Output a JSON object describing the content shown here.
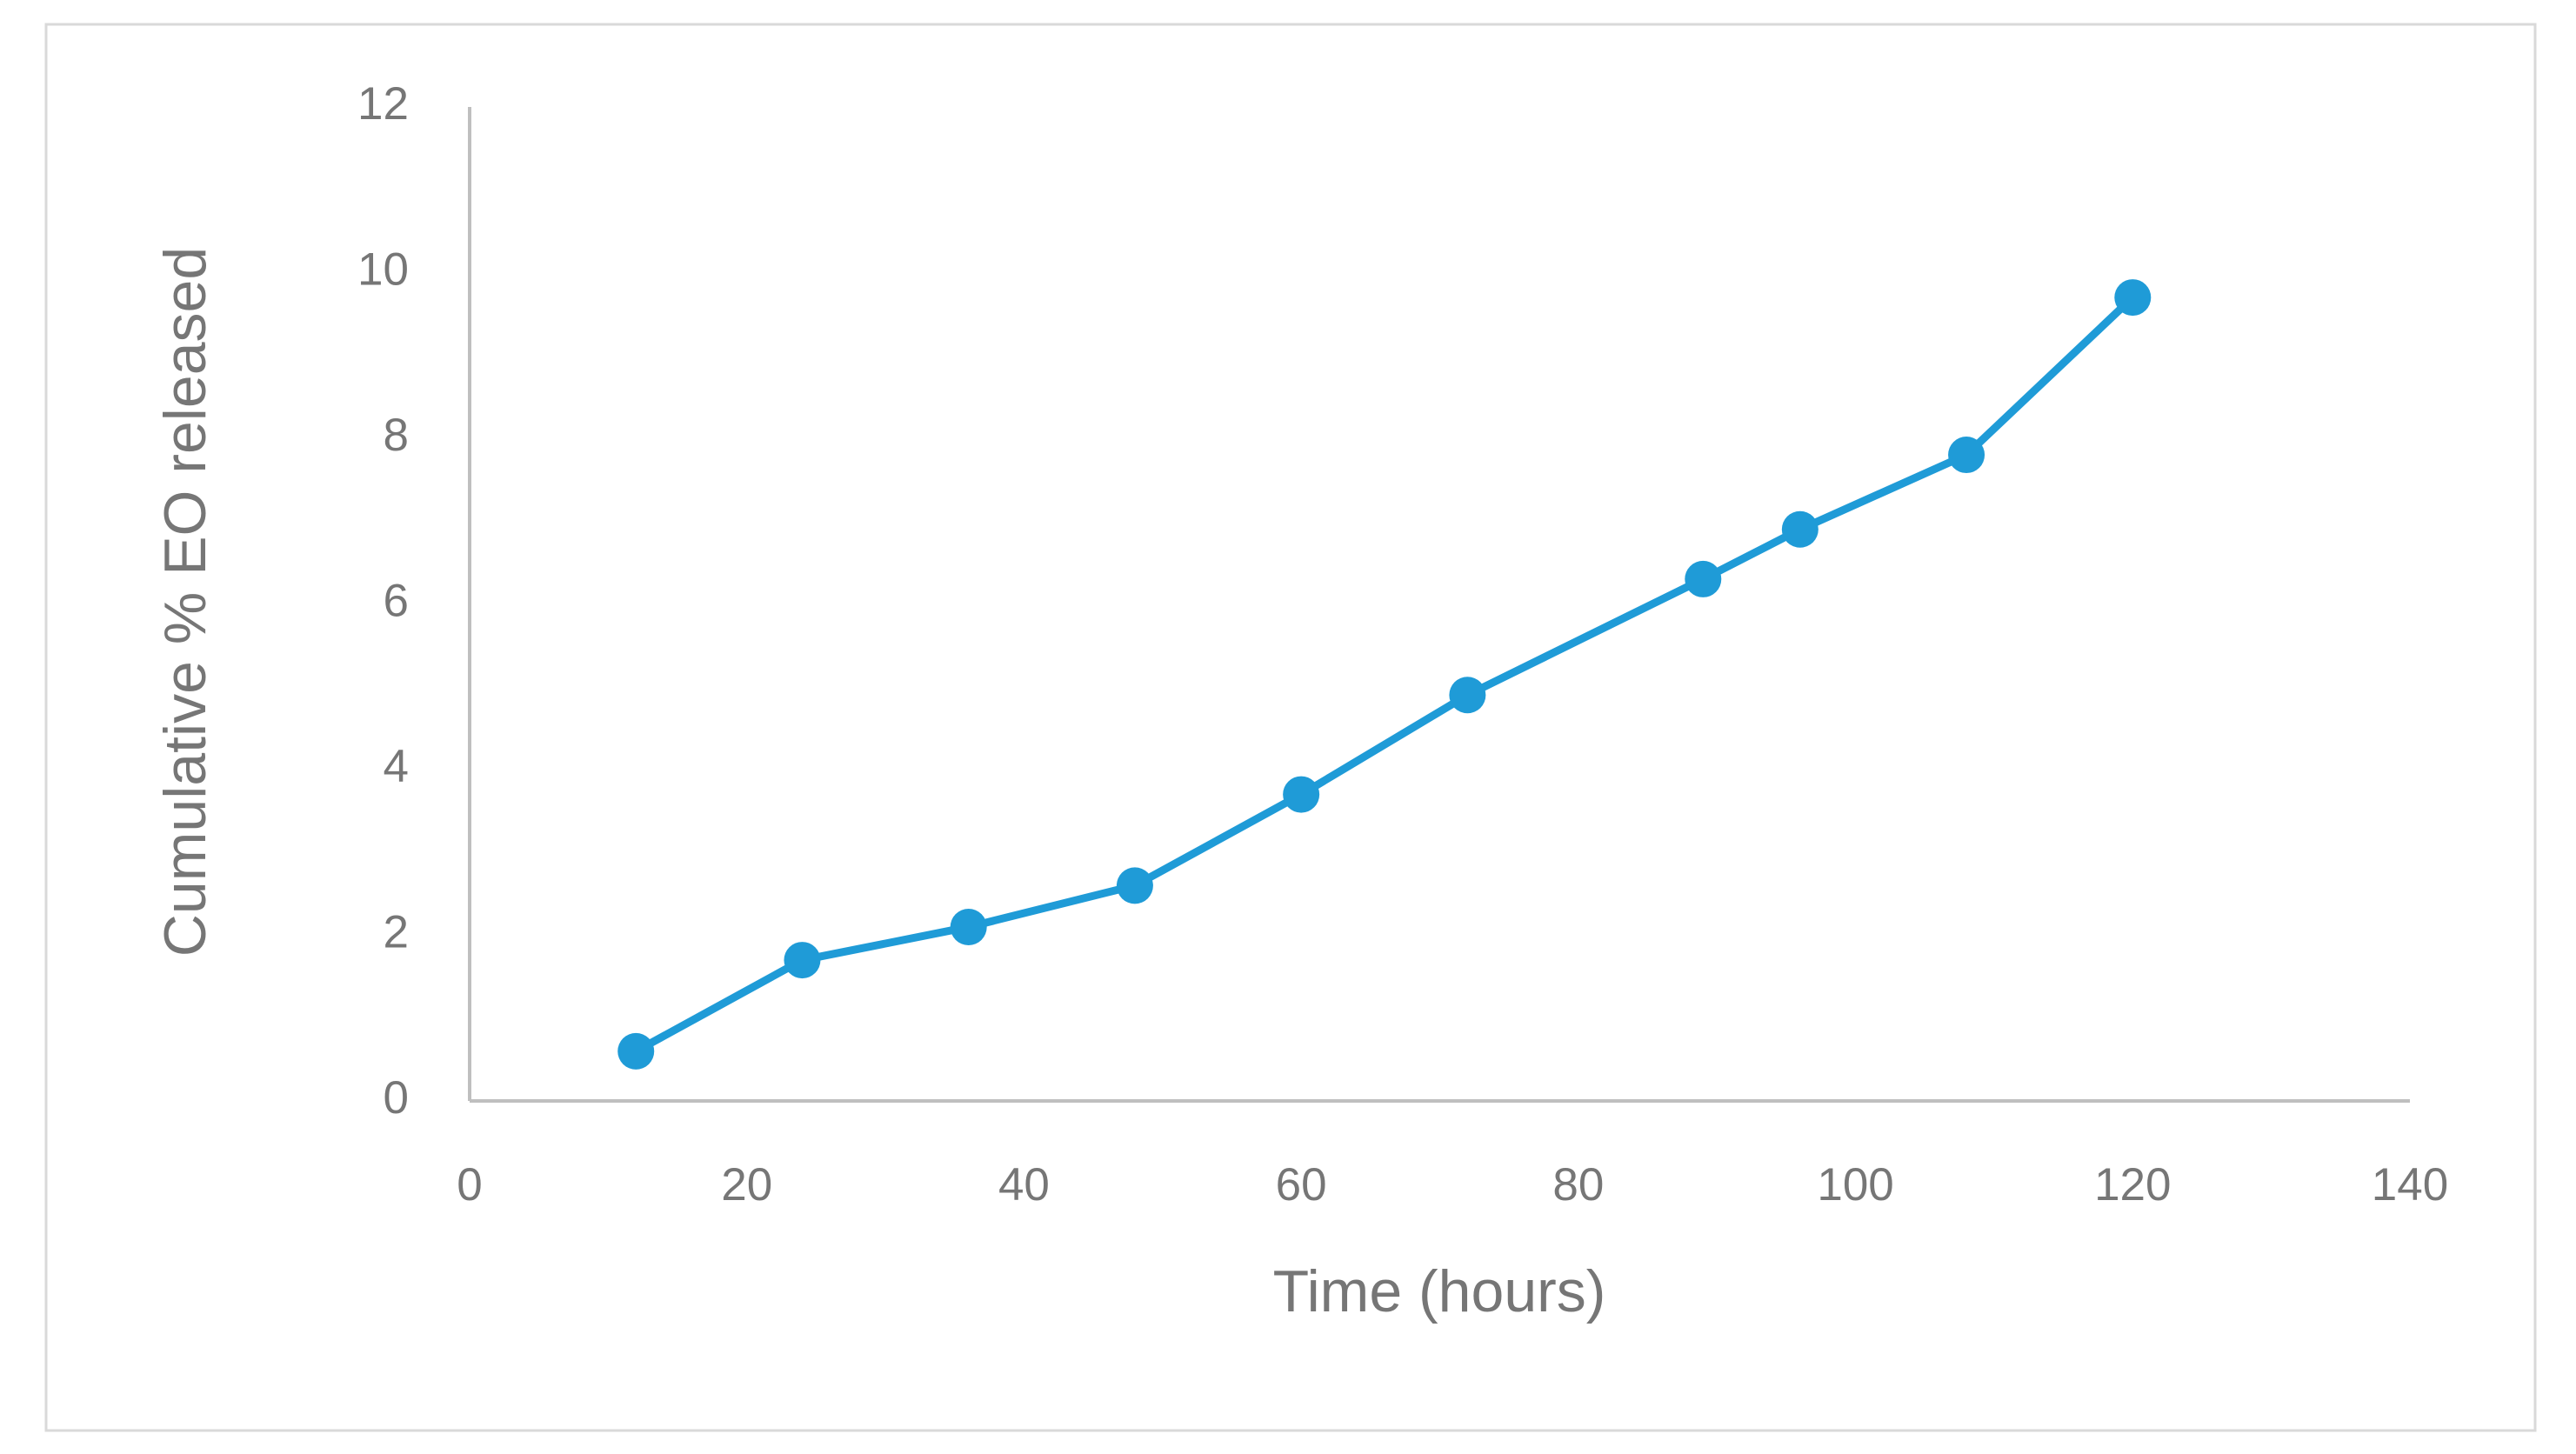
{
  "chart_data": {
    "type": "line",
    "x_label": "Time (hours)",
    "y_label": "Cumulative % EO released",
    "x": [
      12,
      24,
      36,
      48,
      60,
      72,
      89,
      96,
      108,
      120
    ],
    "series": [
      {
        "color": "#1f9bd7",
        "values": [
          0.6,
          1.7,
          2.1,
          2.6,
          3.7,
          4.9,
          6.3,
          6.9,
          7.8,
          9.7
        ]
      }
    ],
    "xlim": [
      0,
      140
    ],
    "xticks": [
      0,
      20,
      40,
      60,
      80,
      100,
      120,
      140
    ],
    "ylim": [
      0,
      12
    ],
    "yticks": [
      0,
      2,
      4,
      6,
      8,
      10,
      12
    ],
    "grid": false,
    "markers": true
  }
}
